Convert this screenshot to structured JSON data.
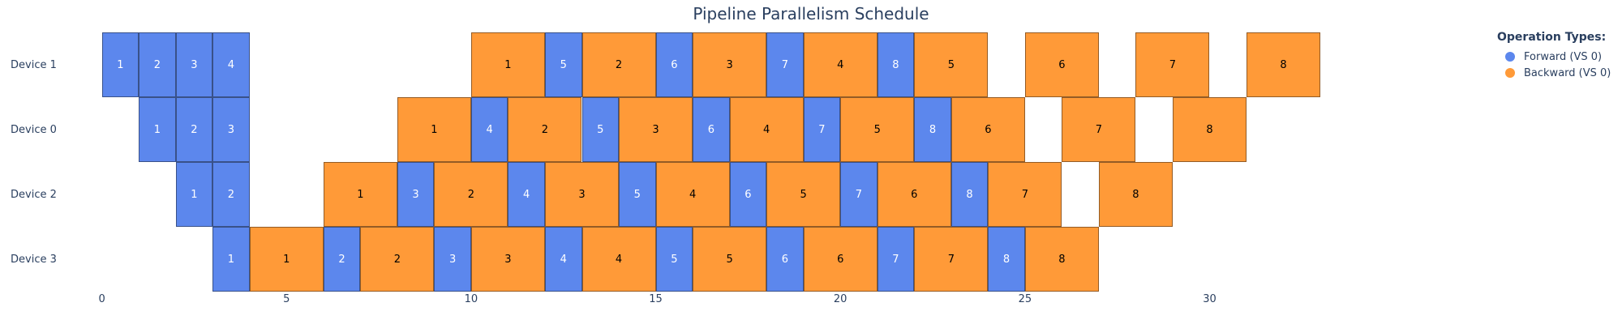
{
  "title": "Pipeline Parallelism Schedule",
  "legend": {
    "title": "Operation Types:",
    "items": [
      {
        "label": "Forward (VS 0)",
        "type": "forward"
      },
      {
        "label": "Backward (VS 0)",
        "type": "backward"
      }
    ]
  },
  "colors": {
    "forward": "#5C87ED",
    "backward": "#FF9A38",
    "axis_text": "#2a3f5f",
    "forward_label": "#ffffff",
    "backward_label": "#000000"
  },
  "chart_data": {
    "type": "gantt",
    "title": "Pipeline Parallelism Schedule",
    "xlabel": "",
    "ylabel": "",
    "x_ticks": [
      0,
      5,
      10,
      15,
      20,
      25,
      30
    ],
    "x_range": [
      0,
      33
    ],
    "forward_duration": 1,
    "backward_duration": 2,
    "devices": [
      "Device 1",
      "Device 0",
      "Device 2",
      "Device 3"
    ],
    "rows": [
      {
        "device": "Device 1",
        "ops": [
          {
            "type": "forward",
            "mb": 1,
            "start": 0,
            "dur": 1
          },
          {
            "type": "forward",
            "mb": 2,
            "start": 1,
            "dur": 1
          },
          {
            "type": "forward",
            "mb": 3,
            "start": 2,
            "dur": 1
          },
          {
            "type": "forward",
            "mb": 4,
            "start": 3,
            "dur": 1
          },
          {
            "type": "backward",
            "mb": 1,
            "start": 10,
            "dur": 2
          },
          {
            "type": "forward",
            "mb": 5,
            "start": 12,
            "dur": 1
          },
          {
            "type": "backward",
            "mb": 2,
            "start": 13,
            "dur": 2
          },
          {
            "type": "forward",
            "mb": 6,
            "start": 15,
            "dur": 1
          },
          {
            "type": "backward",
            "mb": 3,
            "start": 16,
            "dur": 2
          },
          {
            "type": "forward",
            "mb": 7,
            "start": 18,
            "dur": 1
          },
          {
            "type": "backward",
            "mb": 4,
            "start": 19,
            "dur": 2
          },
          {
            "type": "forward",
            "mb": 8,
            "start": 21,
            "dur": 1
          },
          {
            "type": "backward",
            "mb": 5,
            "start": 22,
            "dur": 2
          },
          {
            "type": "backward",
            "mb": 6,
            "start": 25,
            "dur": 2
          },
          {
            "type": "backward",
            "mb": 7,
            "start": 28,
            "dur": 2
          },
          {
            "type": "backward",
            "mb": 8,
            "start": 31,
            "dur": 2
          }
        ]
      },
      {
        "device": "Device 0",
        "ops": [
          {
            "type": "forward",
            "mb": 1,
            "start": 1,
            "dur": 1
          },
          {
            "type": "forward",
            "mb": 2,
            "start": 2,
            "dur": 1
          },
          {
            "type": "forward",
            "mb": 3,
            "start": 3,
            "dur": 1
          },
          {
            "type": "backward",
            "mb": 1,
            "start": 8,
            "dur": 2
          },
          {
            "type": "forward",
            "mb": 4,
            "start": 10,
            "dur": 1
          },
          {
            "type": "backward",
            "mb": 2,
            "start": 11,
            "dur": 2
          },
          {
            "type": "forward",
            "mb": 5,
            "start": 13,
            "dur": 1
          },
          {
            "type": "backward",
            "mb": 3,
            "start": 14,
            "dur": 2
          },
          {
            "type": "forward",
            "mb": 6,
            "start": 16,
            "dur": 1
          },
          {
            "type": "backward",
            "mb": 4,
            "start": 17,
            "dur": 2
          },
          {
            "type": "forward",
            "mb": 7,
            "start": 19,
            "dur": 1
          },
          {
            "type": "backward",
            "mb": 5,
            "start": 20,
            "dur": 2
          },
          {
            "type": "forward",
            "mb": 8,
            "start": 22,
            "dur": 1
          },
          {
            "type": "backward",
            "mb": 6,
            "start": 23,
            "dur": 2
          },
          {
            "type": "backward",
            "mb": 7,
            "start": 26,
            "dur": 2
          },
          {
            "type": "backward",
            "mb": 8,
            "start": 29,
            "dur": 2
          }
        ]
      },
      {
        "device": "Device 2",
        "ops": [
          {
            "type": "forward",
            "mb": 1,
            "start": 2,
            "dur": 1
          },
          {
            "type": "forward",
            "mb": 2,
            "start": 3,
            "dur": 1
          },
          {
            "type": "backward",
            "mb": 1,
            "start": 6,
            "dur": 2
          },
          {
            "type": "forward",
            "mb": 3,
            "start": 8,
            "dur": 1
          },
          {
            "type": "backward",
            "mb": 2,
            "start": 9,
            "dur": 2
          },
          {
            "type": "forward",
            "mb": 4,
            "start": 11,
            "dur": 1
          },
          {
            "type": "backward",
            "mb": 3,
            "start": 12,
            "dur": 2
          },
          {
            "type": "forward",
            "mb": 5,
            "start": 14,
            "dur": 1
          },
          {
            "type": "backward",
            "mb": 4,
            "start": 15,
            "dur": 2
          },
          {
            "type": "forward",
            "mb": 6,
            "start": 17,
            "dur": 1
          },
          {
            "type": "backward",
            "mb": 5,
            "start": 18,
            "dur": 2
          },
          {
            "type": "forward",
            "mb": 7,
            "start": 20,
            "dur": 1
          },
          {
            "type": "backward",
            "mb": 6,
            "start": 21,
            "dur": 2
          },
          {
            "type": "forward",
            "mb": 8,
            "start": 23,
            "dur": 1
          },
          {
            "type": "backward",
            "mb": 7,
            "start": 24,
            "dur": 2
          },
          {
            "type": "backward",
            "mb": 8,
            "start": 27,
            "dur": 2
          }
        ]
      },
      {
        "device": "Device 3",
        "ops": [
          {
            "type": "forward",
            "mb": 1,
            "start": 3,
            "dur": 1
          },
          {
            "type": "backward",
            "mb": 1,
            "start": 4,
            "dur": 2
          },
          {
            "type": "forward",
            "mb": 2,
            "start": 6,
            "dur": 1
          },
          {
            "type": "backward",
            "mb": 2,
            "start": 7,
            "dur": 2
          },
          {
            "type": "forward",
            "mb": 3,
            "start": 9,
            "dur": 1
          },
          {
            "type": "backward",
            "mb": 3,
            "start": 10,
            "dur": 2
          },
          {
            "type": "forward",
            "mb": 4,
            "start": 12,
            "dur": 1
          },
          {
            "type": "backward",
            "mb": 4,
            "start": 13,
            "dur": 2
          },
          {
            "type": "forward",
            "mb": 5,
            "start": 15,
            "dur": 1
          },
          {
            "type": "backward",
            "mb": 5,
            "start": 16,
            "dur": 2
          },
          {
            "type": "forward",
            "mb": 6,
            "start": 18,
            "dur": 1
          },
          {
            "type": "backward",
            "mb": 6,
            "start": 19,
            "dur": 2
          },
          {
            "type": "forward",
            "mb": 7,
            "start": 21,
            "dur": 1
          },
          {
            "type": "backward",
            "mb": 7,
            "start": 22,
            "dur": 2
          },
          {
            "type": "forward",
            "mb": 8,
            "start": 24,
            "dur": 1
          },
          {
            "type": "backward",
            "mb": 8,
            "start": 25,
            "dur": 2
          }
        ]
      }
    ]
  }
}
